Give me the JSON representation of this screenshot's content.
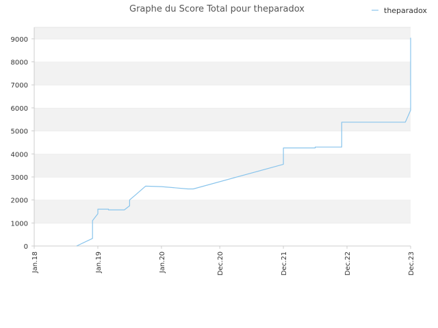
{
  "chart_data": {
    "type": "line",
    "title": "Graphe du Score Total pour theparadox",
    "xlabel": "",
    "ylabel": "",
    "ylim": [
      0,
      9500
    ],
    "yticks": [
      0,
      1000,
      2000,
      3000,
      4000,
      5000,
      6000,
      7000,
      8000,
      9000
    ],
    "xlim": [
      "2018-01",
      "2023-12"
    ],
    "xticks": [
      {
        "date": "2018-01",
        "label": "Jan.18"
      },
      {
        "date": "2019-01",
        "label": "Jan.19"
      },
      {
        "date": "2020-01",
        "label": "Jan.20"
      },
      {
        "date": "2020-12",
        "label": "Dec.20"
      },
      {
        "date": "2021-12",
        "label": "Dec.21"
      },
      {
        "date": "2022-12",
        "label": "Dec.22"
      },
      {
        "date": "2023-12",
        "label": "Dec.23"
      }
    ],
    "grid": "horizontal-bands",
    "legend_position": "top-right",
    "series": [
      {
        "name": "theparadox",
        "color": "#88c4ec",
        "points": [
          [
            "2018-09",
            0
          ],
          [
            "2018-12",
            330
          ],
          [
            "2018-12",
            1100
          ],
          [
            "2019-01",
            1400
          ],
          [
            "2019-01",
            1600
          ],
          [
            "2019-03",
            1600
          ],
          [
            "2019-03",
            1570
          ],
          [
            "2019-06",
            1570
          ],
          [
            "2019-07",
            1750
          ],
          [
            "2019-07",
            2000
          ],
          [
            "2019-08",
            2200
          ],
          [
            "2019-10",
            2600
          ],
          [
            "2020-01",
            2580
          ],
          [
            "2020-06",
            2480
          ],
          [
            "2020-07",
            2480
          ],
          [
            "2021-12",
            3550
          ],
          [
            "2021-12",
            4260
          ],
          [
            "2022-06",
            4260
          ],
          [
            "2022-06",
            4300
          ],
          [
            "2022-11",
            4300
          ],
          [
            "2022-11",
            5380
          ],
          [
            "2023-11",
            5380
          ],
          [
            "2023-12",
            5900
          ],
          [
            "2023-12",
            7700
          ],
          [
            "2023-12",
            9050
          ]
        ]
      }
    ]
  }
}
